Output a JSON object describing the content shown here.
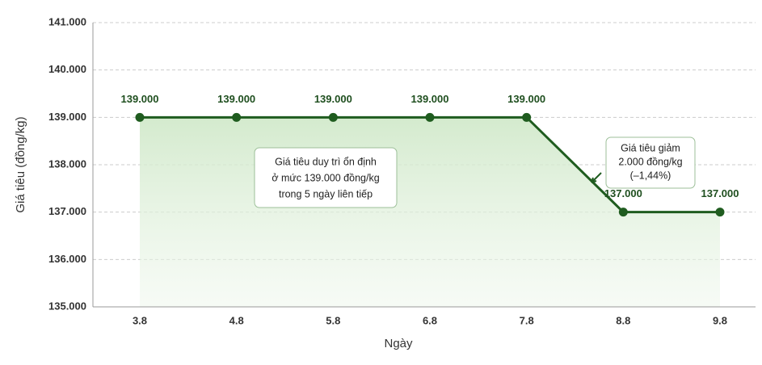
{
  "chart_data": {
    "type": "line",
    "x_label": "Ngày",
    "y_label": "Giá tiêu (đồng/kg)",
    "categories": [
      "3.8",
      "4.8",
      "5.8",
      "6.8",
      "7.8",
      "8.8",
      "9.8"
    ],
    "values": [
      139000,
      139000,
      139000,
      139000,
      139000,
      137000,
      137000
    ],
    "value_labels": [
      "139.000",
      "139.000",
      "139.000",
      "139.000",
      "139.000",
      "137.000",
      "137.000"
    ],
    "color": "#1f5c1f",
    "ylim": [
      135000,
      141000
    ],
    "yticks": [
      {
        "value": 135000,
        "label": "135.000"
      },
      {
        "value": 136000,
        "label": "136.000"
      },
      {
        "value": 137000,
        "label": "137.000"
      },
      {
        "value": 138000,
        "label": "138.000"
      },
      {
        "value": 139000,
        "label": "139.000"
      },
      {
        "value": 140000,
        "label": "140.000"
      },
      {
        "value": 141000,
        "label": "141.000"
      }
    ],
    "grid": true,
    "annotations": [
      {
        "lines": [
          "Giá tiêu duy trì ổn định",
          "ở mức 139.000 đồng/kg",
          "trong 5 ngày liên tiếp"
        ]
      },
      {
        "lines": [
          "Giá tiêu giảm",
          "2.000 đồng/kg",
          "(–1,44%)"
        ]
      }
    ]
  }
}
